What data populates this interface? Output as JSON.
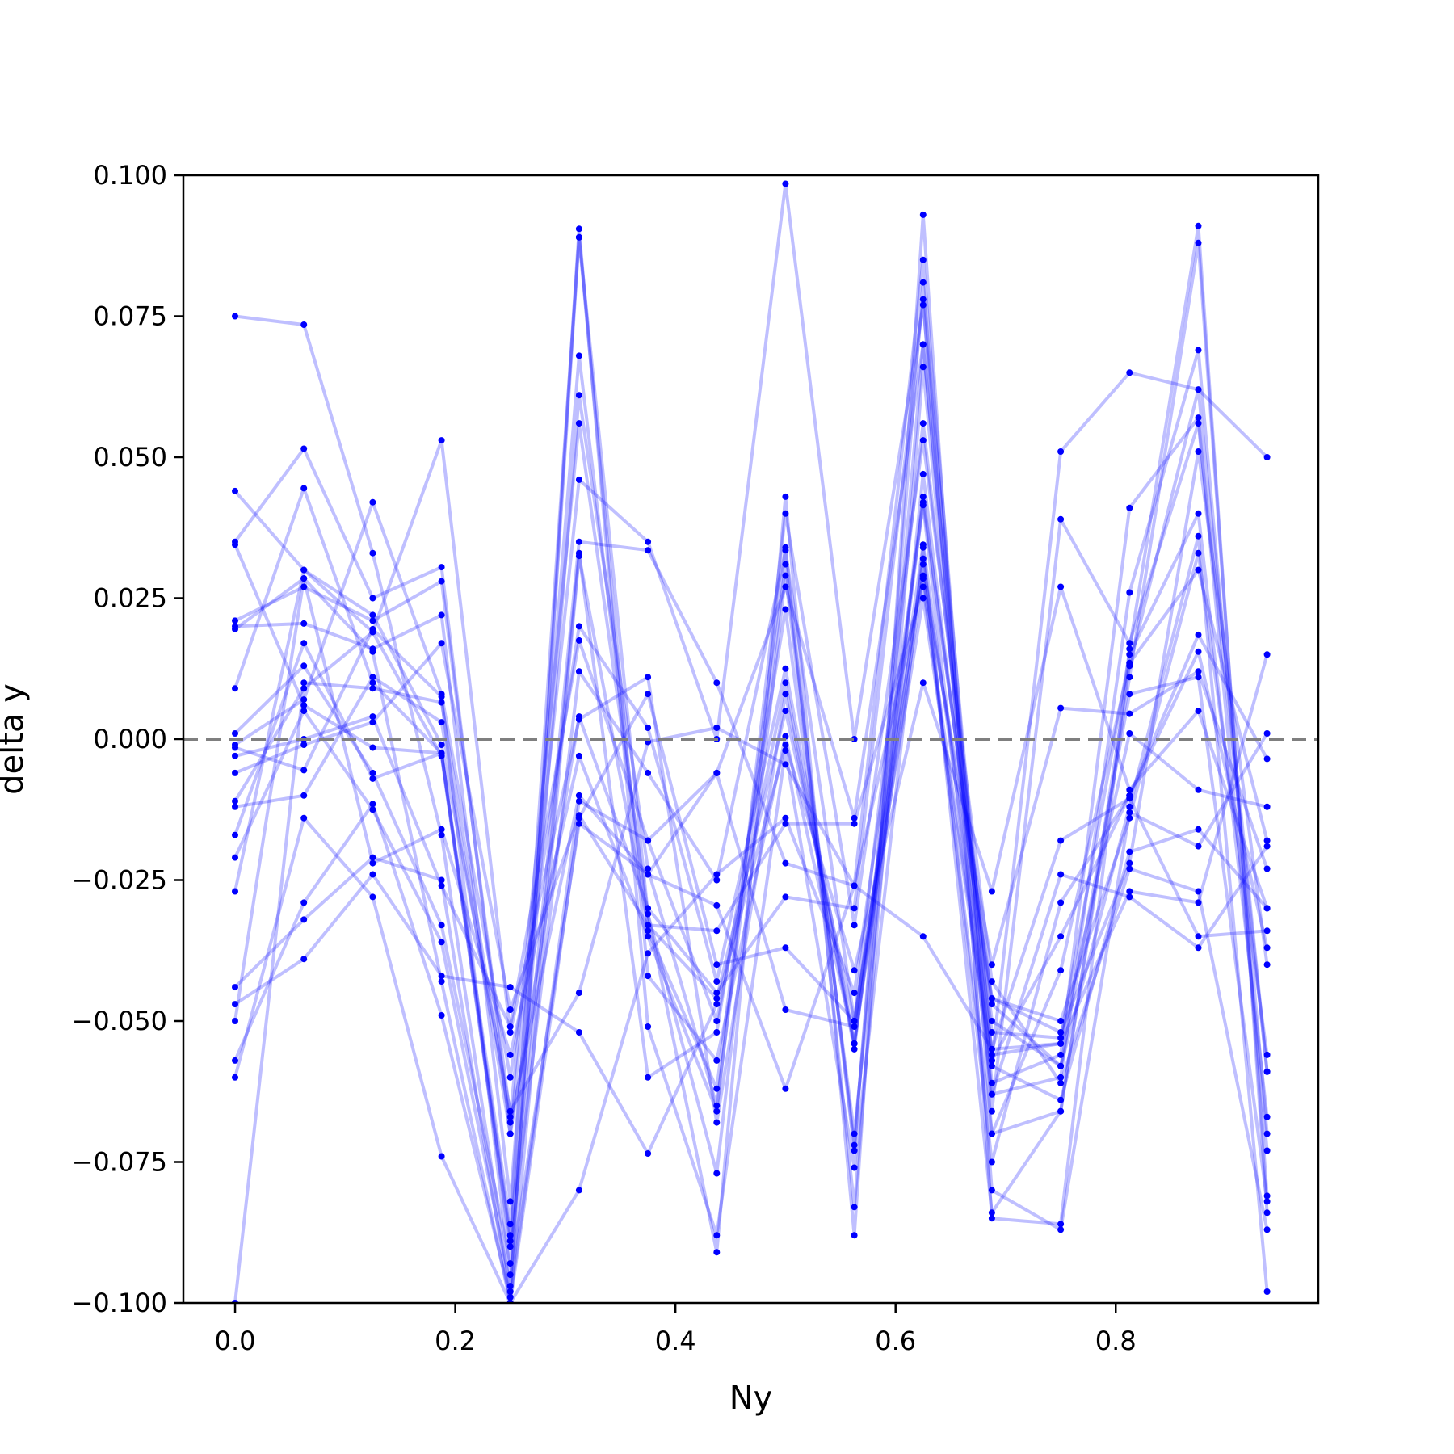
{
  "chart_data": {
    "type": "line",
    "title": "",
    "xlabel": "Ny",
    "ylabel": "delta y",
    "xlim": [
      -0.047,
      0.984
    ],
    "ylim": [
      -0.1,
      0.1
    ],
    "xticks": [
      0.0,
      0.2,
      0.4,
      0.6,
      0.8
    ],
    "xtick_labels": [
      "0.0",
      "0.2",
      "0.4",
      "0.6",
      "0.8"
    ],
    "yticks": [
      -0.1,
      -0.075,
      -0.05,
      -0.025,
      0.0,
      0.025,
      0.05,
      0.075,
      0.1
    ],
    "ytick_labels": [
      "−0.100",
      "−0.075",
      "−0.050",
      "−0.025",
      "0.000",
      "0.025",
      "0.050",
      "0.075",
      "0.100"
    ],
    "reference_line": {
      "y": 0.0,
      "style": "dashed",
      "color": "#7f7f7f"
    },
    "line_color": "#0000ff",
    "line_opacity": 0.25,
    "marker_color": "#0000ff",
    "grid": false,
    "legend": "none",
    "x": [
      0.0,
      0.0625,
      0.125,
      0.1875,
      0.25,
      0.3125,
      0.375,
      0.4375,
      0.5,
      0.5625,
      0.625,
      0.6875,
      0.75,
      0.8125,
      0.875,
      0.9375
    ],
    "series": [
      {
        "values": [
          0.075,
          0.0735,
          0.033,
          -0.017,
          -0.098,
          0.089,
          -0.031,
          -0.091,
          0.043,
          -0.088,
          0.093,
          -0.085,
          -0.086,
          0.016,
          0.091,
          -0.084
        ]
      },
      {
        "values": [
          0.044,
          0.03,
          0.019,
          -0.003,
          -0.089,
          0.061,
          -0.023,
          -0.065,
          0.031,
          -0.073,
          0.081,
          -0.07,
          -0.066,
          0.011,
          0.088,
          -0.081
        ]
      },
      {
        "values": [
          0.035,
          0.0515,
          0.025,
          0.0305,
          -0.07,
          0.046,
          0.035,
          0.0,
          0.0985,
          0.0,
          0.077,
          -0.057,
          0.051,
          0.065,
          0.062,
          0.05
        ]
      },
      {
        "values": [
          0.021,
          0.027,
          0.021,
          0.028,
          -0.067,
          0.056,
          -0.031,
          -0.077,
          0.029,
          -0.072,
          0.07,
          -0.061,
          -0.056,
          0.041,
          0.057,
          -0.073
        ]
      },
      {
        "values": [
          0.02,
          0.0205,
          0.016,
          0.022,
          -0.082,
          0.068,
          -0.034,
          -0.062,
          0.034,
          -0.083,
          0.066,
          -0.063,
          -0.06,
          0.026,
          0.069,
          -0.07
        ]
      },
      {
        "values": [
          0.009,
          0.0445,
          0.01,
          -0.0025,
          -0.088,
          0.035,
          0.0335,
          0.01,
          -0.022,
          -0.026,
          0.085,
          -0.066,
          0.039,
          0.017,
          0.056,
          -0.059
        ]
      },
      {
        "values": [
          0.001,
          0.013,
          -0.006,
          -0.033,
          -0.093,
          0.033,
          -0.06,
          -0.052,
          0.023,
          -0.07,
          0.047,
          -0.052,
          -0.053,
          0.015,
          0.04,
          -0.067
        ]
      },
      {
        "values": [
          -0.001,
          0.007,
          0.042,
          0.008,
          -0.06,
          0.02,
          0.002,
          -0.043,
          0.0125,
          -0.054,
          0.043,
          -0.047,
          -0.058,
          -0.012,
          0.036,
          -0.098
        ]
      },
      {
        "values": [
          -0.003,
          0.0,
          0.004,
          -0.026,
          -0.051,
          0.0175,
          -0.018,
          -0.05,
          0.01,
          -0.055,
          0.042,
          -0.046,
          -0.05,
          -0.014,
          0.033,
          -0.056
        ]
      },
      {
        "values": [
          -0.006,
          -0.001,
          0.003,
          0.017,
          -0.048,
          -0.0135,
          -0.033,
          -0.046,
          0.005,
          -0.05,
          0.031,
          -0.046,
          -0.052,
          -0.022,
          0.051,
          -0.04
        ]
      },
      {
        "values": [
          -0.011,
          0.009,
          0.019,
          0.053,
          -0.052,
          0.0035,
          0.011,
          -0.068,
          0.008,
          -0.054,
          0.032,
          -0.075,
          -0.029,
          -0.01,
          0.0155,
          -0.037
        ]
      },
      {
        "values": [
          -0.017,
          0.017,
          -0.007,
          -0.0025,
          -0.086,
          0.089,
          -0.042,
          -0.057,
          0.0005,
          -0.054,
          0.029,
          -0.07,
          -0.041,
          0.0135,
          0.03,
          -0.018
        ]
      },
      {
        "values": [
          -0.021,
          0.005,
          -0.0125,
          -0.036,
          -0.097,
          0.0905,
          -0.051,
          -0.088,
          -0.002,
          -0.076,
          0.034,
          -0.084,
          -0.066,
          0.013,
          0.062,
          -0.059
        ]
      },
      {
        "values": [
          -0.027,
          0.03,
          0.022,
          -0.001,
          -0.066,
          -0.045,
          -0.0005,
          0.002,
          -0.0045,
          -0.026,
          0.0285,
          -0.04,
          0.0055,
          0.0045,
          0.012,
          -0.023
        ]
      },
      {
        "values": [
          -0.044,
          -0.032,
          -0.021,
          -0.025,
          -0.1,
          0.0325,
          -0.033,
          -0.034,
          -0.015,
          -0.015,
          0.027,
          -0.057,
          -0.035,
          -0.01,
          0.0185,
          -0.0035
        ]
      },
      {
        "values": [
          -0.047,
          -0.039,
          -0.024,
          -0.042,
          -0.044,
          -0.052,
          -0.0735,
          -0.047,
          -0.001,
          -0.041,
          0.01,
          -0.027,
          0.027,
          -0.009,
          0.005,
          -0.03
        ]
      },
      {
        "values": [
          -0.05,
          0.0285,
          0.0155,
          -0.043,
          -0.1,
          -0.08,
          -0.038,
          -0.024,
          -0.014,
          -0.045,
          0.0415,
          -0.063,
          -0.024,
          -0.028,
          -0.037,
          -0.019
        ]
      },
      {
        "values": [
          -0.057,
          -0.029,
          -0.0115,
          -0.049,
          -0.099,
          -0.011,
          -0.018,
          -0.006,
          -0.048,
          -0.051,
          0.0345,
          -0.055,
          -0.018,
          -0.0105,
          -0.035,
          -0.034
        ]
      },
      {
        "values": [
          -0.06,
          -0.014,
          -0.028,
          -0.074,
          -0.1,
          -0.014,
          0.008,
          -0.04,
          -0.037,
          -0.05,
          0.025,
          -0.058,
          -0.064,
          -0.02,
          -0.016,
          -0.03
        ]
      },
      {
        "values": [
          -0.1,
          0.01,
          0.009,
          0.0065,
          -0.068,
          -0.01,
          -0.024,
          -0.0295,
          -0.062,
          -0.026,
          -0.035,
          -0.055,
          -0.054,
          -0.027,
          -0.029,
          0.015
        ]
      },
      {
        "values": [
          0.0345,
          0.006,
          -0.0015,
          -0.0025,
          -0.09,
          0.012,
          -0.006,
          -0.025,
          0.0335,
          -0.05,
          0.056,
          -0.05,
          -0.058,
          0.008,
          0.011,
          -0.082
        ]
      },
      {
        "values": [
          0.0195,
          0.0285,
          -0.022,
          -0.016,
          -0.056,
          -0.003,
          -0.035,
          -0.066,
          0.04,
          -0.033,
          0.053,
          -0.043,
          -0.061,
          -0.023,
          -0.027,
          -0.087
        ]
      },
      {
        "values": [
          -0.0015,
          -0.0055,
          0.0195,
          0.0075,
          -0.095,
          -0.015,
          -0.024,
          -0.006,
          0.027,
          -0.014,
          0.07,
          -0.056,
          -0.054,
          0.001,
          -0.009,
          -0.012
        ]
      },
      {
        "values": [
          -0.012,
          -0.01,
          0.011,
          0.003,
          -0.07,
          0.004,
          -0.03,
          -0.045,
          -0.028,
          -0.03,
          0.078,
          -0.08,
          -0.087,
          -0.013,
          -0.019,
          0.001
        ]
      }
    ]
  }
}
